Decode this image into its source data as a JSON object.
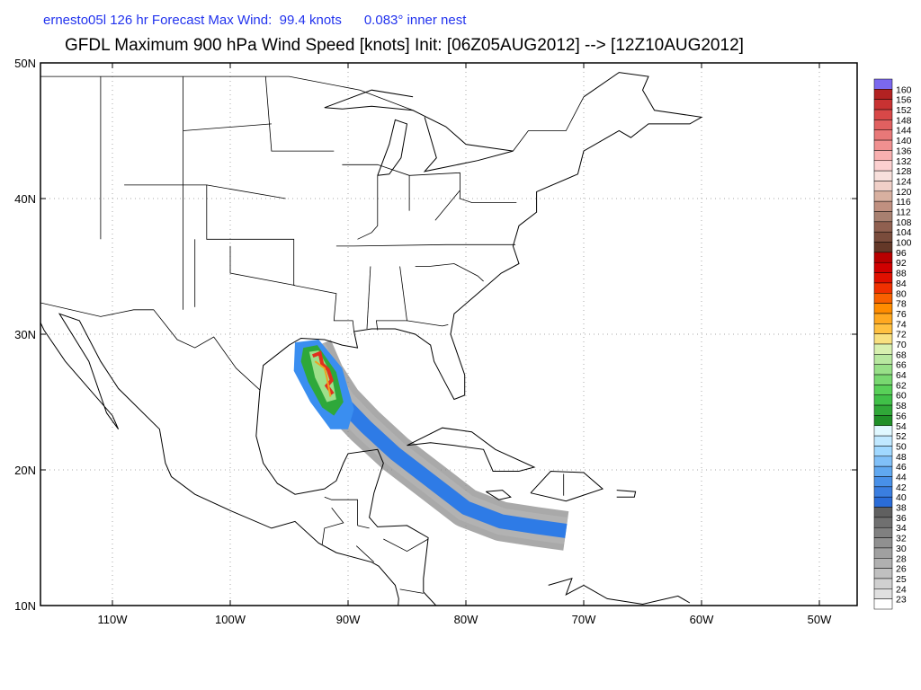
{
  "header": {
    "line1": "ernesto05l 126 hr Forecast Max Wind:  99.4 knots      0.083° inner nest",
    "title": "GFDL Maximum 900 hPa Wind Speed [knots] Init: [06Z05AUG2012] --> [12Z10AUG2012]"
  },
  "map": {
    "lat_labels": [
      "50N",
      "40N",
      "30N",
      "20N",
      "10N"
    ],
    "lon_labels": [
      "110W",
      "100W",
      "90W",
      "80W",
      "70W",
      "60W",
      "50W"
    ]
  },
  "colorbar": {
    "labels": [
      "160",
      "156",
      "152",
      "148",
      "144",
      "140",
      "136",
      "132",
      "128",
      "124",
      "120",
      "116",
      "112",
      "108",
      "104",
      "100",
      "96",
      "92",
      "88",
      "84",
      "80",
      "78",
      "76",
      "74",
      "72",
      "70",
      "68",
      "66",
      "64",
      "62",
      "60",
      "58",
      "56",
      "54",
      "52",
      "50",
      "48",
      "46",
      "44",
      "42",
      "40",
      "38",
      "36",
      "34",
      "32",
      "30",
      "28",
      "26",
      "25",
      "24",
      "23"
    ]
  }
}
